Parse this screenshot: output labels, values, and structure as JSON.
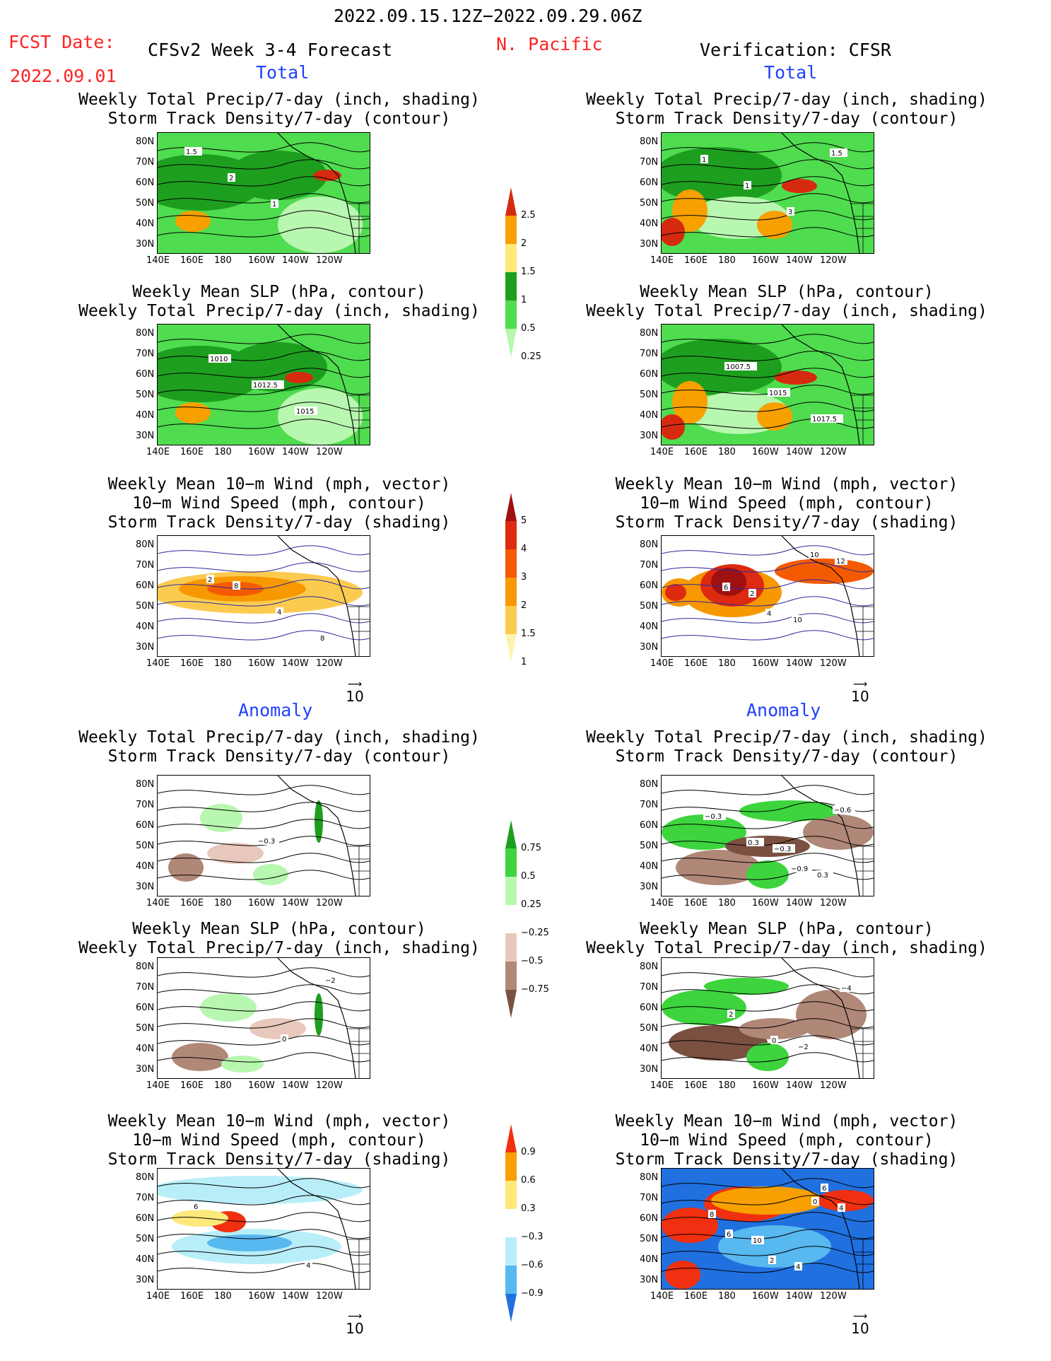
{
  "header": {
    "period": "2022.09.15.12Z−2022.09.29.06Z",
    "fcst_label": "FCST Date:",
    "fcst_date": "2022.09.01",
    "model": "CFSv2 Week 3-4 Forecast",
    "region": "N. Pacific",
    "verification": "Verification: CFSR"
  },
  "sections": {
    "total": "Total",
    "anomaly": "Anomaly"
  },
  "titles": {
    "precip_storm": [
      "Weekly Total Precip/7-day (inch, shading)",
      "Storm Track Density/7-day (contour)"
    ],
    "slp_precip": [
      "Weekly Mean SLP (hPa, contour)",
      "Weekly Total Precip/7-day (inch, shading)"
    ],
    "wind_storm": [
      "Weekly Mean 10−m Wind (mph, vector)",
      "10−m Wind Speed (mph, contour)",
      "Storm Track Density/7-day (shading)"
    ]
  },
  "axes": {
    "lat_labels": [
      "80N",
      "70N",
      "60N",
      "50N",
      "40N",
      "30N"
    ],
    "lon_labels": [
      "140E",
      "160E",
      "180",
      "160W",
      "140W",
      "120W"
    ]
  },
  "vector_ref": "10",
  "colorbars": {
    "precip_total": {
      "labels": [
        "2.5",
        "2",
        "1.5",
        "1",
        "0.5",
        "0.25"
      ],
      "colors": [
        "#d62a10",
        "#f7a000",
        "#fde87a",
        "#1e9e1e",
        "#4fdc4f",
        "#b8f7b0"
      ]
    },
    "storm_total": {
      "labels": [
        "5",
        "4",
        "3",
        "2",
        "1.5",
        "1"
      ],
      "colors": [
        "#a01010",
        "#dd2a10",
        "#f45a00",
        "#f79800",
        "#fbcb50",
        "#fdf4b0"
      ]
    },
    "precip_anom": {
      "labels": [
        "0.75",
        "0.5",
        "0.25",
        "−0.25",
        "−0.5",
        "−0.75"
      ],
      "colors": [
        "#1e9e1e",
        "#3dd43d",
        "#b8f7b0",
        "#ffffff",
        "#e8c8bc",
        "#b08878",
        "#7a5040"
      ]
    },
    "storm_anom": {
      "labels": [
        "0.9",
        "0.6",
        "0.3",
        "−0.3",
        "−0.6",
        "−0.9"
      ],
      "colors": [
        "#f03010",
        "#f7a000",
        "#fde87a",
        "#ffffff",
        "#b8eef8",
        "#58b8f0",
        "#2070e0"
      ]
    }
  },
  "panels": [
    {
      "id": "L1",
      "labels": [
        "1.5",
        "2",
        "1"
      ]
    },
    {
      "id": "R1",
      "labels": [
        "1",
        "1",
        "3",
        "1.5"
      ]
    },
    {
      "id": "L2",
      "labels": [
        "1010",
        "1012.5",
        "1015"
      ]
    },
    {
      "id": "R2",
      "labels": [
        "1007.5",
        "1015",
        "1017.5"
      ]
    },
    {
      "id": "L3",
      "labels": [
        "8",
        "4",
        "8",
        "2"
      ]
    },
    {
      "id": "R3",
      "labels": [
        "2",
        "10",
        "12",
        "6",
        "4",
        "10"
      ]
    },
    {
      "id": "L4",
      "labels": [
        "−0.3"
      ]
    },
    {
      "id": "R4",
      "labels": [
        "−0.3",
        "0.3",
        "−0.3",
        "0.3",
        "−0.9",
        "−0.6"
      ]
    },
    {
      "id": "L5",
      "labels": [
        "0",
        "−2"
      ]
    },
    {
      "id": "R5",
      "labels": [
        "−2",
        "−4",
        "2",
        "0"
      ]
    },
    {
      "id": "L6",
      "labels": [
        "4",
        "6"
      ]
    },
    {
      "id": "R6",
      "labels": [
        "6",
        "8",
        "10",
        "4",
        "4",
        "6",
        "2",
        "0"
      ]
    }
  ]
}
